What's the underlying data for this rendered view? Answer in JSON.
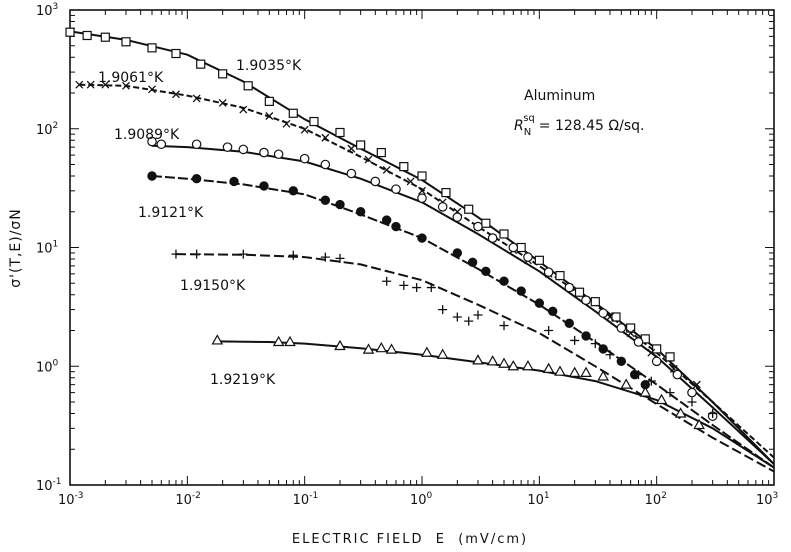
{
  "chart_data": {
    "type": "scatter",
    "xlabel": "ELECTRIC FIELD  E  (mV/cm)",
    "ylabel": "σ'(T,E)/σN",
    "xscale": "log",
    "yscale": "log",
    "xlim": [
      0.001,
      1000
    ],
    "ylim": [
      0.1,
      1000
    ],
    "x_ticks": [
      {
        "base": "10",
        "exp": "-3"
      },
      {
        "base": "10",
        "exp": "-2"
      },
      {
        "base": "10",
        "exp": "-1"
      },
      {
        "base": "10",
        "exp": "0"
      },
      {
        "base": "10",
        "exp": "1"
      },
      {
        "base": "10",
        "exp": "2"
      },
      {
        "base": "10",
        "exp": "3"
      }
    ],
    "y_ticks": [
      {
        "base": "10",
        "exp": "-1"
      },
      {
        "base": "10",
        "exp": "0"
      },
      {
        "base": "10",
        "exp": "1"
      },
      {
        "base": "10",
        "exp": "2"
      },
      {
        "base": "10",
        "exp": "3"
      }
    ],
    "annotation": {
      "line1": "Aluminum",
      "r_symbol": "R",
      "r_sub": "N",
      "r_sup": "sq",
      "r_value": "= 128.45 Ω/sq."
    },
    "series": [
      {
        "name": "1.9035°K",
        "label": "1.9035°K",
        "marker": "square",
        "points": [
          [
            0.001,
            650
          ],
          [
            0.0014,
            610
          ],
          [
            0.002,
            590
          ],
          [
            0.003,
            540
          ],
          [
            0.005,
            480
          ],
          [
            0.008,
            430
          ],
          [
            0.013,
            350
          ],
          [
            0.02,
            290
          ],
          [
            0.033,
            230
          ],
          [
            0.05,
            170
          ],
          [
            0.08,
            135
          ],
          [
            0.12,
            115
          ],
          [
            0.2,
            93
          ],
          [
            0.3,
            73
          ],
          [
            0.45,
            63
          ],
          [
            0.7,
            48
          ],
          [
            1,
            40
          ],
          [
            1.6,
            29
          ],
          [
            2.5,
            21
          ],
          [
            3.5,
            16
          ],
          [
            5,
            13
          ],
          [
            7,
            10
          ],
          [
            10,
            7.8
          ],
          [
            15,
            5.8
          ],
          [
            22,
            4.2
          ],
          [
            30,
            3.5
          ],
          [
            45,
            2.6
          ],
          [
            60,
            2.1
          ],
          [
            80,
            1.7
          ],
          [
            100,
            1.4
          ],
          [
            130,
            1.2
          ]
        ],
        "curve": [
          [
            0.001,
            660
          ],
          [
            0.003,
            560
          ],
          [
            0.01,
            420
          ],
          [
            0.03,
            250
          ],
          [
            0.1,
            120
          ],
          [
            0.3,
            68
          ],
          [
            1,
            37
          ],
          [
            3,
            18
          ],
          [
            10,
            7.6
          ],
          [
            30,
            3.4
          ],
          [
            100,
            1.4
          ],
          [
            300,
            0.5
          ],
          [
            1000,
            0.15
          ]
        ]
      },
      {
        "name": "1.9061°K",
        "label": "1.9061°K",
        "marker": "cross",
        "points": [
          [
            0.0012,
            235
          ],
          [
            0.0015,
            235
          ],
          [
            0.002,
            235
          ],
          [
            0.003,
            230
          ],
          [
            0.005,
            215
          ],
          [
            0.008,
            195
          ],
          [
            0.012,
            180
          ],
          [
            0.02,
            165
          ],
          [
            0.03,
            145
          ],
          [
            0.05,
            128
          ],
          [
            0.07,
            110
          ],
          [
            0.1,
            98
          ],
          [
            0.15,
            84
          ],
          [
            0.25,
            68
          ],
          [
            0.35,
            55
          ],
          [
            0.5,
            45
          ],
          [
            0.8,
            36
          ],
          [
            1,
            30
          ],
          [
            1.5,
            24
          ],
          [
            2,
            20
          ],
          [
            3,
            15
          ],
          [
            4,
            12
          ],
          [
            6,
            9.5
          ],
          [
            8,
            7.8
          ],
          [
            12,
            6
          ],
          [
            18,
            4.6
          ],
          [
            25,
            3.6
          ],
          [
            40,
            2.6
          ],
          [
            60,
            1.9
          ],
          [
            90,
            1.3
          ],
          [
            140,
            0.95
          ],
          [
            220,
            0.7
          ]
        ],
        "curve": [
          [
            0.0012,
            235
          ],
          [
            0.003,
            230
          ],
          [
            0.01,
            190
          ],
          [
            0.03,
            150
          ],
          [
            0.1,
            100
          ],
          [
            0.3,
            58
          ],
          [
            1,
            31
          ],
          [
            3,
            15
          ],
          [
            10,
            7
          ],
          [
            30,
            3.3
          ],
          [
            100,
            1.3
          ],
          [
            300,
            0.5
          ],
          [
            1000,
            0.17
          ]
        ]
      },
      {
        "name": "1.9089°K",
        "label": "1.9089°K",
        "marker": "circle",
        "points": [
          [
            0.005,
            78
          ],
          [
            0.006,
            74
          ],
          [
            0.012,
            74
          ],
          [
            0.022,
            70
          ],
          [
            0.03,
            67
          ],
          [
            0.045,
            63
          ],
          [
            0.06,
            61
          ],
          [
            0.1,
            56
          ],
          [
            0.15,
            50
          ],
          [
            0.25,
            42
          ],
          [
            0.4,
            36
          ],
          [
            0.6,
            31
          ],
          [
            1,
            26
          ],
          [
            1.5,
            22
          ],
          [
            2,
            18
          ],
          [
            3,
            15
          ],
          [
            4,
            12
          ],
          [
            6,
            10
          ],
          [
            8,
            8.3
          ],
          [
            12,
            6.2
          ],
          [
            18,
            4.6
          ],
          [
            25,
            3.6
          ],
          [
            35,
            2.8
          ],
          [
            50,
            2.1
          ],
          [
            70,
            1.6
          ],
          [
            100,
            1.1
          ],
          [
            150,
            0.85
          ],
          [
            200,
            0.6
          ],
          [
            300,
            0.38
          ]
        ],
        "curve": [
          [
            0.005,
            72
          ],
          [
            0.01,
            70
          ],
          [
            0.03,
            64
          ],
          [
            0.1,
            53
          ],
          [
            0.3,
            38
          ],
          [
            1,
            24
          ],
          [
            3,
            13
          ],
          [
            10,
            6.3
          ],
          [
            30,
            2.9
          ],
          [
            100,
            1.2
          ],
          [
            300,
            0.45
          ],
          [
            1000,
            0.15
          ]
        ]
      },
      {
        "name": "1.9121°K",
        "label": "1.9121°K",
        "marker": "filled-circle",
        "points": [
          [
            0.005,
            40
          ],
          [
            0.012,
            38
          ],
          [
            0.025,
            36
          ],
          [
            0.045,
            33
          ],
          [
            0.08,
            30
          ],
          [
            0.15,
            25
          ],
          [
            0.2,
            23
          ],
          [
            0.3,
            20
          ],
          [
            0.5,
            17
          ],
          [
            0.6,
            15
          ],
          [
            1,
            12
          ],
          [
            2,
            9
          ],
          [
            2.7,
            7.5
          ],
          [
            3.5,
            6.3
          ],
          [
            5,
            5.2
          ],
          [
            7,
            4.3
          ],
          [
            10,
            3.4
          ],
          [
            13,
            2.9
          ],
          [
            18,
            2.3
          ],
          [
            25,
            1.8
          ],
          [
            35,
            1.4
          ],
          [
            50,
            1.1
          ],
          [
            65,
            0.85
          ],
          [
            80,
            0.7
          ]
        ],
        "curve": [
          [
            0.005,
            40
          ],
          [
            0.01,
            38
          ],
          [
            0.03,
            34
          ],
          [
            0.1,
            28
          ],
          [
            0.3,
            19
          ],
          [
            1,
            12
          ],
          [
            3,
            6.6
          ],
          [
            10,
            3.3
          ],
          [
            30,
            1.6
          ],
          [
            100,
            0.7
          ],
          [
            300,
            0.32
          ],
          [
            1000,
            0.14
          ]
        ]
      },
      {
        "name": "1.9150°K",
        "label": "1.9150°K",
        "marker": "plus",
        "points": [
          [
            0.008,
            8.8
          ],
          [
            0.012,
            8.8
          ],
          [
            0.03,
            8.8
          ],
          [
            0.08,
            8.6
          ],
          [
            0.15,
            8.3
          ],
          [
            0.2,
            8.1
          ],
          [
            0.5,
            5.2
          ],
          [
            0.7,
            4.8
          ],
          [
            0.9,
            4.6
          ],
          [
            1.2,
            4.6
          ],
          [
            1.5,
            3.0
          ],
          [
            2,
            2.6
          ],
          [
            2.5,
            2.4
          ],
          [
            3,
            2.7
          ],
          [
            5,
            2.2
          ],
          [
            12,
            2.0
          ],
          [
            20,
            1.65
          ],
          [
            30,
            1.55
          ],
          [
            40,
            1.25
          ],
          [
            50,
            1.1
          ],
          [
            70,
            0.85
          ],
          [
            90,
            0.75
          ],
          [
            130,
            0.6
          ],
          [
            200,
            0.5
          ],
          [
            300,
            0.4
          ]
        ],
        "curve": [
          [
            0.008,
            8.8
          ],
          [
            0.03,
            8.7
          ],
          [
            0.1,
            8.3
          ],
          [
            0.3,
            7.2
          ],
          [
            1,
            5.3
          ],
          [
            3,
            3.3
          ],
          [
            10,
            1.9
          ],
          [
            30,
            1.0
          ],
          [
            100,
            0.48
          ],
          [
            300,
            0.25
          ],
          [
            1000,
            0.13
          ]
        ]
      },
      {
        "name": "1.9219°K",
        "label": "1.9219°K",
        "marker": "triangle",
        "points": [
          [
            0.018,
            1.65
          ],
          [
            0.06,
            1.6
          ],
          [
            0.075,
            1.6
          ],
          [
            0.2,
            1.48
          ],
          [
            0.35,
            1.38
          ],
          [
            0.45,
            1.42
          ],
          [
            0.55,
            1.38
          ],
          [
            1.1,
            1.3
          ],
          [
            1.5,
            1.25
          ],
          [
            3,
            1.12
          ],
          [
            4,
            1.1
          ],
          [
            5,
            1.05
          ],
          [
            6,
            1.0
          ],
          [
            8,
            1.0
          ],
          [
            12,
            0.95
          ],
          [
            15,
            0.9
          ],
          [
            20,
            0.88
          ],
          [
            25,
            0.88
          ],
          [
            35,
            0.82
          ],
          [
            55,
            0.7
          ],
          [
            80,
            0.6
          ],
          [
            110,
            0.52
          ],
          [
            160,
            0.4
          ],
          [
            230,
            0.32
          ]
        ],
        "curve": [
          [
            0.018,
            1.62
          ],
          [
            0.05,
            1.6
          ],
          [
            0.1,
            1.55
          ],
          [
            0.3,
            1.42
          ],
          [
            1,
            1.25
          ],
          [
            3,
            1.08
          ],
          [
            10,
            0.92
          ],
          [
            30,
            0.75
          ],
          [
            100,
            0.52
          ],
          [
            300,
            0.3
          ],
          [
            1000,
            0.14
          ]
        ]
      }
    ]
  }
}
